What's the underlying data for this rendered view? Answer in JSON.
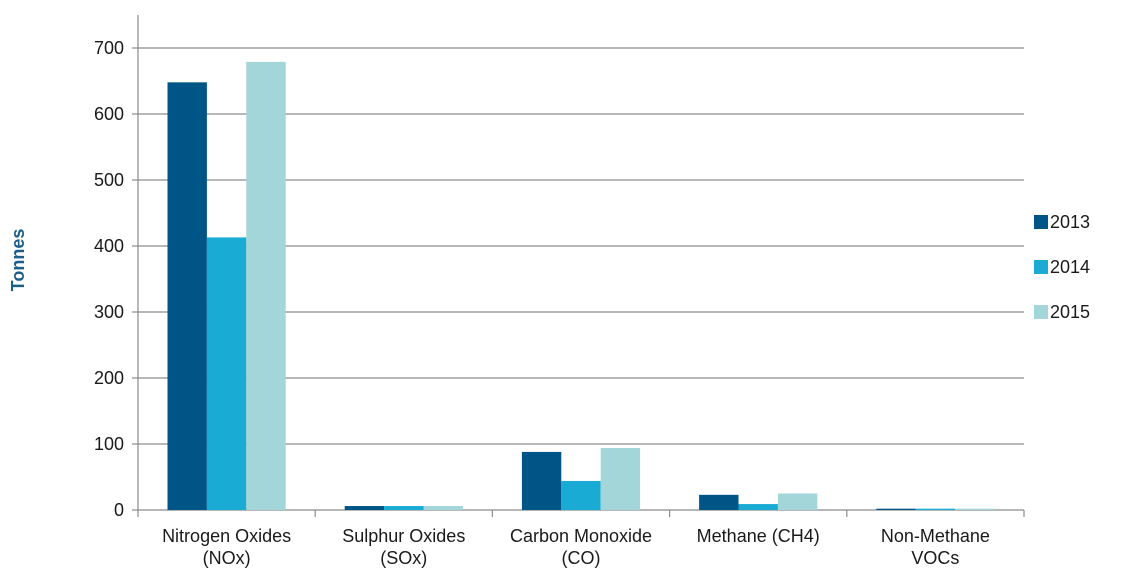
{
  "chart_data": {
    "type": "bar",
    "title": "",
    "xlabel": "",
    "ylabel": "Tonnes",
    "ylim": [
      0,
      700
    ],
    "yticks": [
      0,
      100,
      200,
      300,
      400,
      500,
      600,
      700
    ],
    "grid": true,
    "legend_position": "right",
    "categories": [
      [
        "Nitrogen Oxides",
        "(NOx)"
      ],
      [
        "Sulphur Oxides",
        "(SOx)"
      ],
      [
        "Carbon Monoxide",
        "(CO)"
      ],
      [
        "Methane (CH4)"
      ],
      [
        "Non-Methane",
        "VOCs"
      ]
    ],
    "series": [
      {
        "name": "2013",
        "color": "#005587",
        "values": [
          648,
          6,
          88,
          23,
          2
        ]
      },
      {
        "name": "2014",
        "color": "#1aabd4",
        "values": [
          413,
          6,
          44,
          9,
          2
        ]
      },
      {
        "name": "2015",
        "color": "#a3d6d8",
        "values": [
          679,
          6,
          94,
          25,
          2
        ]
      }
    ]
  }
}
